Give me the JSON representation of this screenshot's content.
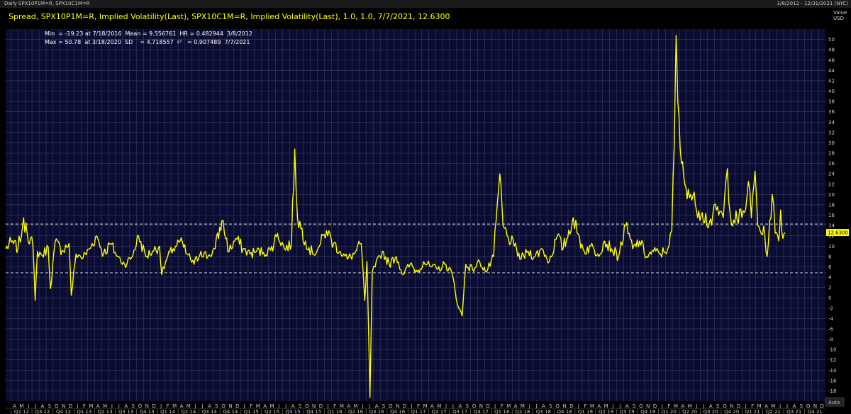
{
  "window": {
    "title": "Daily SPX10P1M=R, SPX10C1M=R",
    "date_range": "3/8/2012 - 12/31/2021 (NYC)"
  },
  "chart_data": {
    "type": "line",
    "title": "Spread, SPX10P1M=R, Implied Volatility(Last), SPX10C1M=R, Implied Volatility(Last),  1.0, 1.0, 7/7/2021, 12.6300",
    "stats": {
      "line1": "Min  = -19.23 at 7/18/2016  Mean = 9.556761  HR = 0.482944  3/8/2012",
      "line2": "Max = 50.78  at 3/18/2020  SD    = 4.718557  r²   = 0.907489  7/7/2021"
    },
    "ylabel": "Value",
    "yunit": "USD",
    "ylim": [
      -20,
      52
    ],
    "yticks": [
      -18,
      -16,
      -14,
      -12,
      -10,
      -8,
      -6,
      -4,
      -2,
      0,
      2,
      4,
      6,
      8,
      10,
      12,
      14,
      16,
      18,
      20,
      22,
      24,
      26,
      28,
      30,
      32,
      34,
      36,
      38,
      40,
      42,
      44,
      46,
      48,
      50
    ],
    "last_value_label": "12.6300",
    "reference_lines": [
      14.28,
      4.84
    ],
    "auto_label": "Auto",
    "x_range": [
      "2012-03-08",
      "2021-12-31"
    ],
    "grid": true,
    "month_letters": [
      "J",
      "F",
      "M",
      "A",
      "M",
      "J",
      "J",
      "A",
      "S",
      "O",
      "N",
      "D"
    ],
    "quarter_labels": [
      "Q2 12",
      "Q3 12",
      "Q4 12",
      "Q1 13",
      "Q2 13",
      "Q3 13",
      "Q4 13",
      "Q1 14",
      "Q2 14",
      "Q3 14",
      "Q4 14",
      "Q1 15",
      "Q2 15",
      "Q3 15",
      "Q4 15",
      "Q1 16",
      "Q2 16",
      "Q3 16",
      "Q4 16",
      "Q1 17",
      "Q2 17",
      "Q3 17",
      "Q4 17",
      "Q1 18",
      "Q2 18",
      "Q3 18",
      "Q4 18",
      "Q1 19",
      "Q2 19",
      "Q3 19",
      "Q4 19",
      "Q1 20",
      "Q2 20",
      "Q3 20",
      "Q4 20",
      "Q1 21",
      "Q2 21",
      "Q3 21",
      "Q4 21"
    ],
    "series": [
      {
        "color": "#ffff00",
        "points": [
          [
            "2012-03-08",
            9.5
          ],
          [
            "2012-04-01",
            10.8
          ],
          [
            "2012-05-01",
            9.6
          ],
          [
            "2012-05-20",
            13.5
          ],
          [
            "2012-06-05",
            14.5
          ],
          [
            "2012-06-10",
            12.5
          ],
          [
            "2012-07-05",
            10.2
          ],
          [
            "2012-07-15",
            -0.5
          ],
          [
            "2012-07-25",
            9.0
          ],
          [
            "2012-08-15",
            8.2
          ],
          [
            "2012-09-10",
            9.8
          ],
          [
            "2012-09-20",
            1.8
          ],
          [
            "2012-10-10",
            10.8
          ],
          [
            "2012-11-10",
            9.2
          ],
          [
            "2012-12-10",
            10.5
          ],
          [
            "2012-12-20",
            0.5
          ],
          [
            "2013-01-10",
            8.5
          ],
          [
            "2013-02-10",
            7.8
          ],
          [
            "2013-03-10",
            9.5
          ],
          [
            "2013-04-10",
            12.0
          ],
          [
            "2013-05-10",
            8.5
          ],
          [
            "2013-06-10",
            10.5
          ],
          [
            "2013-07-10",
            8.0
          ],
          [
            "2013-08-10",
            6.5
          ],
          [
            "2013-09-10",
            7.8
          ],
          [
            "2013-10-10",
            12.0
          ],
          [
            "2013-11-10",
            8.0
          ],
          [
            "2013-12-10",
            9.0
          ],
          [
            "2014-01-10",
            10.0
          ],
          [
            "2014-01-20",
            4.5
          ],
          [
            "2014-02-10",
            7.5
          ],
          [
            "2014-03-10",
            9.5
          ],
          [
            "2014-04-10",
            11.0
          ],
          [
            "2014-05-10",
            8.5
          ],
          [
            "2014-06-10",
            6.5
          ],
          [
            "2014-07-10",
            9.0
          ],
          [
            "2014-08-10",
            8.0
          ],
          [
            "2014-09-10",
            9.5
          ],
          [
            "2014-10-10",
            15.0
          ],
          [
            "2014-11-10",
            9.0
          ],
          [
            "2014-12-10",
            11.5
          ],
          [
            "2015-01-10",
            9.5
          ],
          [
            "2015-02-10",
            8.5
          ],
          [
            "2015-03-10",
            9.0
          ],
          [
            "2015-04-10",
            8.8
          ],
          [
            "2015-05-10",
            9.2
          ],
          [
            "2015-06-10",
            12.5
          ],
          [
            "2015-07-10",
            9.5
          ],
          [
            "2015-08-10",
            10.5
          ],
          [
            "2015-08-24",
            28.8
          ],
          [
            "2015-09-05",
            15.5
          ],
          [
            "2015-10-10",
            11.0
          ],
          [
            "2015-11-10",
            8.5
          ],
          [
            "2015-12-10",
            10.0
          ],
          [
            "2016-01-10",
            13.0
          ],
          [
            "2016-02-10",
            10.5
          ],
          [
            "2016-03-10",
            9.0
          ],
          [
            "2016-04-10",
            7.5
          ],
          [
            "2016-05-10",
            8.5
          ],
          [
            "2016-06-10",
            10.5
          ],
          [
            "2016-06-25",
            -0.5
          ],
          [
            "2016-07-05",
            7.0
          ],
          [
            "2016-07-18",
            -19.23
          ],
          [
            "2016-07-28",
            5.0
          ],
          [
            "2016-08-10",
            6.0
          ],
          [
            "2016-09-10",
            9.0
          ],
          [
            "2016-10-10",
            6.5
          ],
          [
            "2016-11-10",
            8.0
          ],
          [
            "2016-12-10",
            4.5
          ],
          [
            "2017-01-10",
            6.5
          ],
          [
            "2017-02-10",
            5.0
          ],
          [
            "2017-03-10",
            7.0
          ],
          [
            "2017-04-10",
            6.0
          ],
          [
            "2017-05-10",
            5.5
          ],
          [
            "2017-06-10",
            6.5
          ],
          [
            "2017-07-10",
            5.0
          ],
          [
            "2017-08-10",
            -2.0
          ],
          [
            "2017-08-25",
            -3.5
          ],
          [
            "2017-09-10",
            6.5
          ],
          [
            "2017-10-10",
            5.5
          ],
          [
            "2017-11-10",
            7.0
          ],
          [
            "2017-12-10",
            5.0
          ],
          [
            "2018-01-10",
            8.0
          ],
          [
            "2018-02-06",
            24.0
          ],
          [
            "2018-02-20",
            14.0
          ],
          [
            "2018-03-10",
            12.0
          ],
          [
            "2018-04-10",
            10.0
          ],
          [
            "2018-05-10",
            7.5
          ],
          [
            "2018-06-10",
            9.0
          ],
          [
            "2018-07-10",
            8.0
          ],
          [
            "2018-08-10",
            9.5
          ],
          [
            "2018-09-10",
            7.0
          ],
          [
            "2018-10-15",
            12.0
          ],
          [
            "2018-11-10",
            9.5
          ],
          [
            "2018-12-24",
            15.5
          ],
          [
            "2019-01-10",
            12.5
          ],
          [
            "2019-02-10",
            9.0
          ],
          [
            "2019-03-10",
            10.0
          ],
          [
            "2019-04-10",
            8.5
          ],
          [
            "2019-05-10",
            11.0
          ],
          [
            "2019-06-10",
            9.5
          ],
          [
            "2019-07-10",
            8.0
          ],
          [
            "2019-08-10",
            14.0
          ],
          [
            "2019-09-10",
            9.5
          ],
          [
            "2019-10-10",
            11.0
          ],
          [
            "2019-11-10",
            8.0
          ],
          [
            "2019-12-10",
            9.0
          ],
          [
            "2020-01-10",
            8.5
          ],
          [
            "2020-02-10",
            9.5
          ],
          [
            "2020-02-28",
            13.0
          ],
          [
            "2020-03-10",
            30.0
          ],
          [
            "2020-03-18",
            50.78
          ],
          [
            "2020-03-25",
            38.0
          ],
          [
            "2020-04-10",
            26.0
          ],
          [
            "2020-04-25",
            22.0
          ],
          [
            "2020-05-10",
            21.0
          ],
          [
            "2020-06-10",
            18.0
          ],
          [
            "2020-07-10",
            16.5
          ],
          [
            "2020-08-10",
            14.5
          ],
          [
            "2020-09-10",
            17.0
          ],
          [
            "2020-10-10",
            15.5
          ],
          [
            "2020-10-28",
            25.0
          ],
          [
            "2020-11-10",
            16.0
          ],
          [
            "2020-12-10",
            15.0
          ],
          [
            "2021-01-10",
            16.5
          ],
          [
            "2021-01-28",
            22.5
          ],
          [
            "2021-02-10",
            15.5
          ],
          [
            "2021-02-26",
            24.5
          ],
          [
            "2021-03-10",
            14.0
          ],
          [
            "2021-04-10",
            12.0
          ],
          [
            "2021-04-20",
            8.0
          ],
          [
            "2021-05-12",
            20.0
          ],
          [
            "2021-05-25",
            12.5
          ],
          [
            "2021-06-10",
            11.0
          ],
          [
            "2021-06-18",
            17.0
          ],
          [
            "2021-06-28",
            11.5
          ],
          [
            "2021-07-07",
            12.63
          ]
        ]
      }
    ]
  }
}
